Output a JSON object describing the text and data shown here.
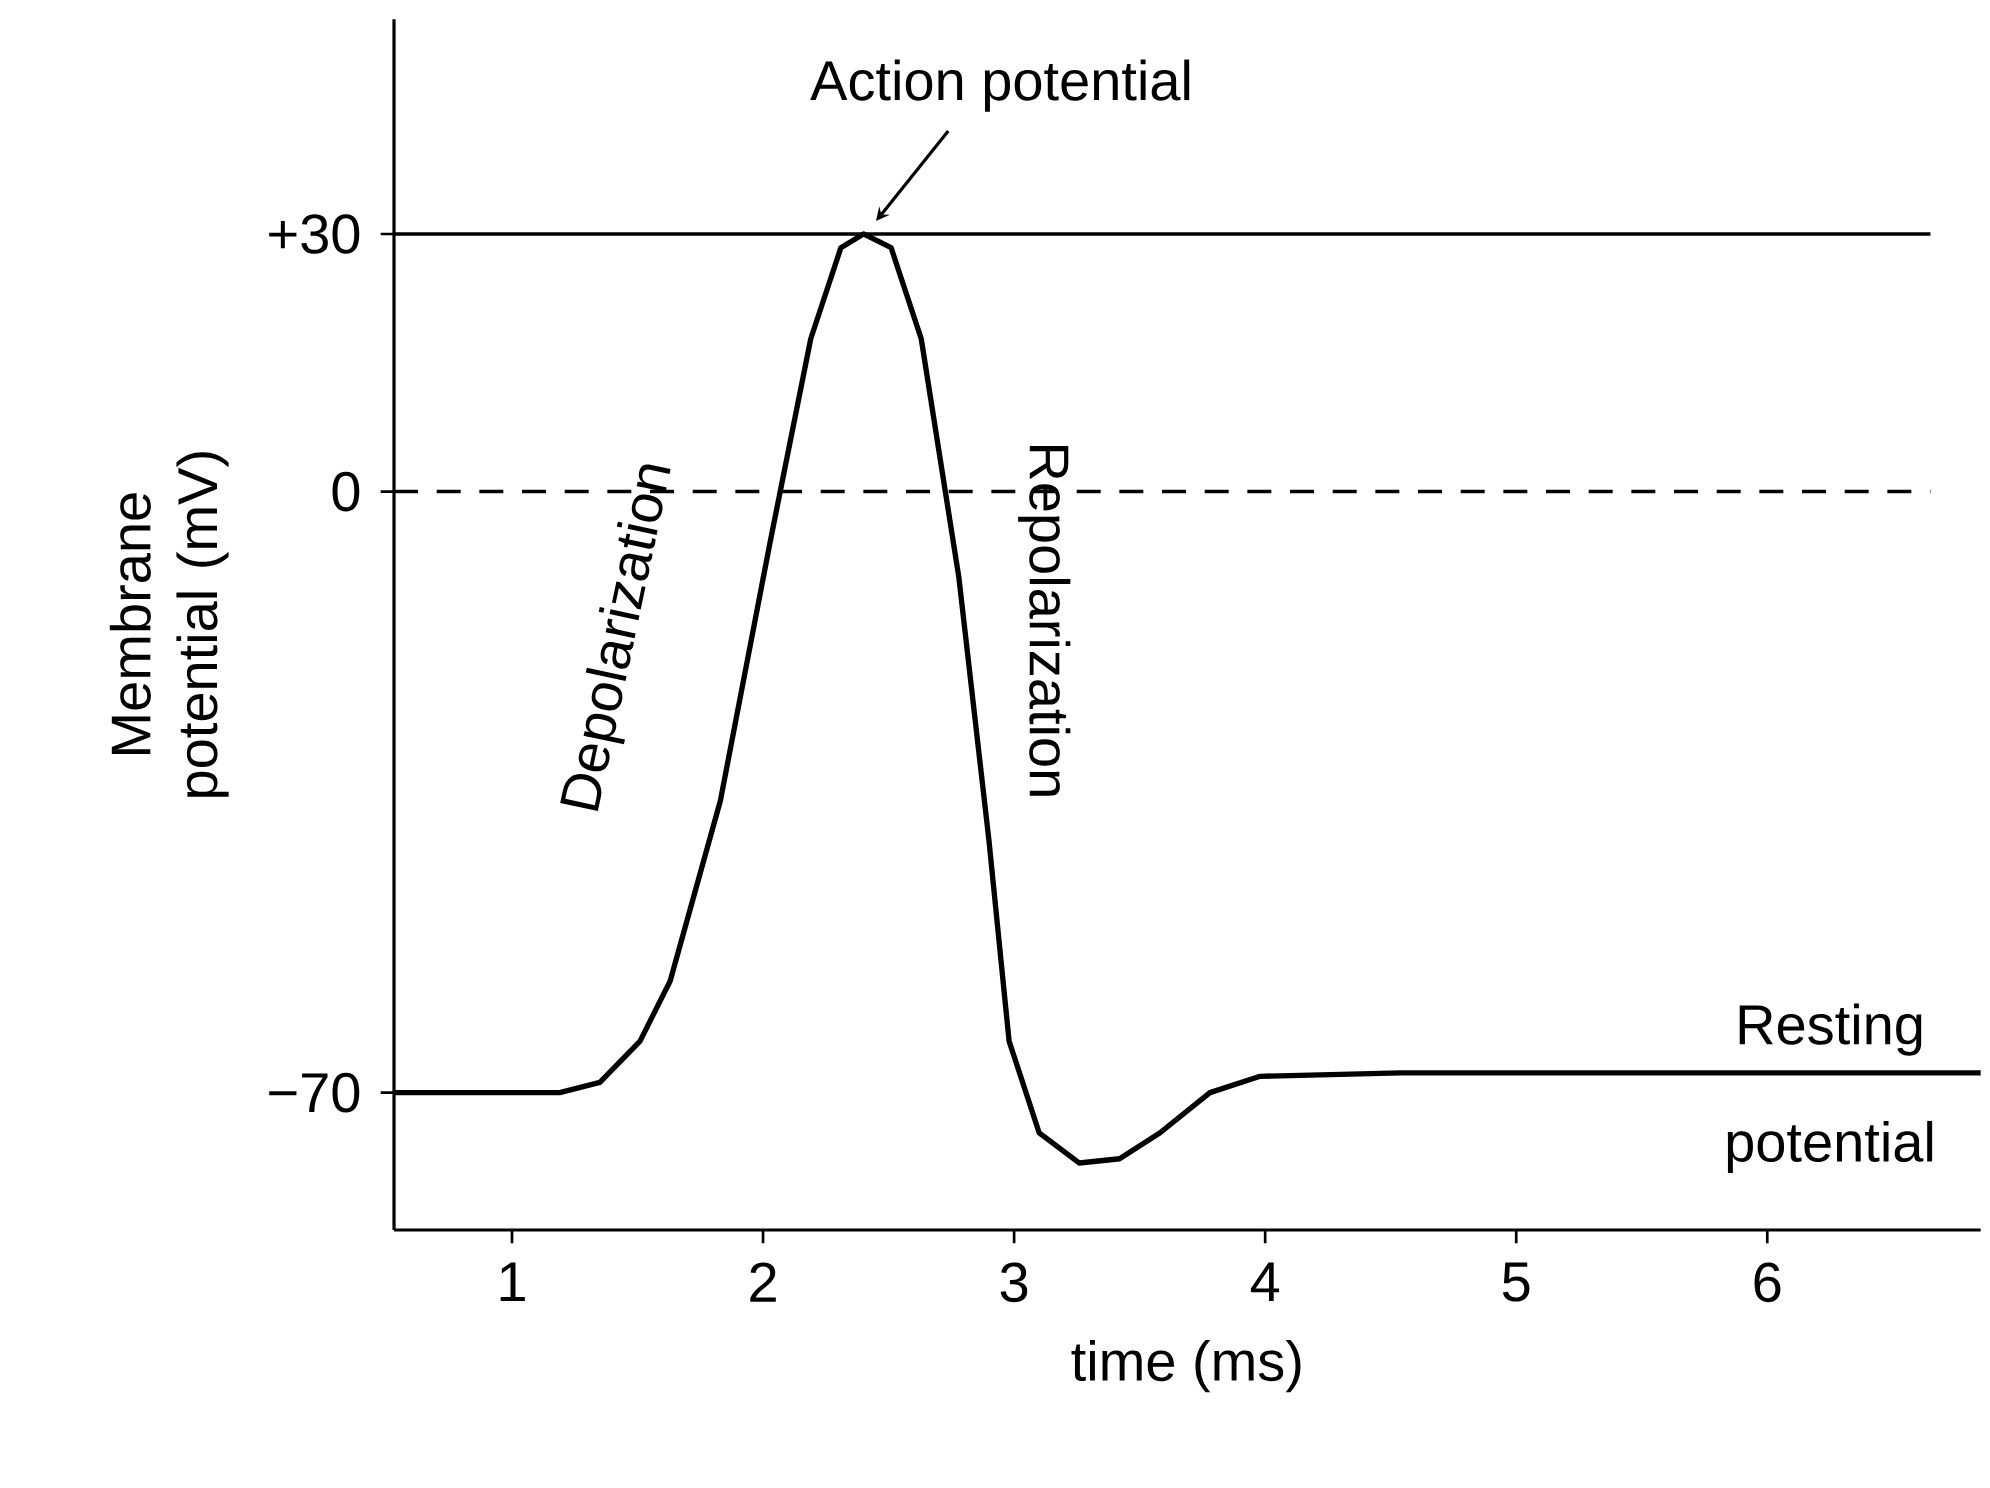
{
  "chart_data": {
    "type": "line",
    "xlabel": "time (ms)",
    "ylabel": "Membrane potential (mV)",
    "x": [
      0.53,
      1.19,
      1.35,
      1.51,
      1.63,
      1.83,
      2.03,
      2.19,
      2.31,
      2.4,
      2.51,
      2.63,
      2.78,
      2.9,
      2.98,
      3.1,
      3.26,
      3.42,
      3.58,
      3.78,
      3.98,
      4.54,
      6.85
    ],
    "values": [
      -70,
      -70,
      -68.8,
      -64,
      -57,
      -36,
      -5.6,
      17.8,
      28.4,
      30,
      28.4,
      17.8,
      -10,
      -40.7,
      -64,
      -74.7,
      -78.2,
      -77.7,
      -74.7,
      -70,
      -68.1,
      -67.7,
      -67.7
    ],
    "color": "#000000",
    "line_style": "solid",
    "marker": "none",
    "grid": false,
    "xlim": [
      0.53,
      6.85
    ],
    "ylim": [
      -86,
      55
    ],
    "xticks": [
      1,
      2,
      3,
      4,
      5,
      6
    ],
    "yticks": [
      {
        "value": -70,
        "label": "−70"
      },
      0,
      {
        "value": 30,
        "label": "+30"
      }
    ],
    "ref_lines": [
      {
        "axis": "y",
        "value": 30,
        "color": "#000000",
        "line_style": "solid"
      },
      {
        "axis": "y",
        "value": 0,
        "color": "#000000",
        "line_style": "dashed"
      }
    ],
    "annotations": [
      {
        "text": "Action potential",
        "x": 2.4,
        "y": 30
      },
      "Depolarization",
      "Repolarization",
      "Resting potential"
    ]
  }
}
